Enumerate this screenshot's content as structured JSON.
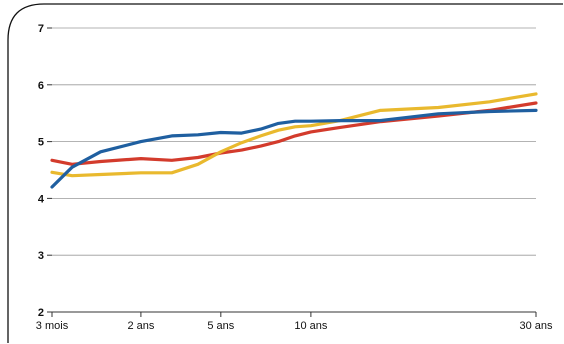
{
  "chart_data": {
    "type": "line",
    "title": "",
    "xlabel": "",
    "ylabel": "",
    "x_scale": "sqrt",
    "x_unit": "years",
    "xlim": [
      0.25,
      30
    ],
    "ylim": [
      2,
      7
    ],
    "grid": "horizontal",
    "yticks": [
      {
        "value": 2,
        "label": "2"
      },
      {
        "value": 3,
        "label": "3"
      },
      {
        "value": 4,
        "label": "4"
      },
      {
        "value": 5,
        "label": "5"
      },
      {
        "value": 6,
        "label": "6"
      },
      {
        "value": 7,
        "label": "7"
      }
    ],
    "xticks": [
      {
        "value": 0.25,
        "label": "3 mois"
      },
      {
        "value": 2,
        "label": "2 ans"
      },
      {
        "value": 5,
        "label": "5 ans"
      },
      {
        "value": 10,
        "label": "10 ans"
      },
      {
        "value": 30,
        "label": "30 ans"
      }
    ],
    "series": [
      {
        "color": "#d33b2c",
        "x": [
          0.25,
          0.5,
          1,
          2,
          3,
          4,
          5,
          6,
          7,
          8,
          9,
          10,
          12,
          15,
          20,
          25,
          30
        ],
        "y": [
          4.67,
          4.6,
          4.65,
          4.7,
          4.67,
          4.72,
          4.8,
          4.85,
          4.92,
          5.0,
          5.1,
          5.17,
          5.25,
          5.35,
          5.45,
          5.55,
          5.68
        ]
      },
      {
        "color": "#e9b92e",
        "x": [
          0.25,
          0.5,
          1,
          2,
          3,
          4,
          5,
          6,
          7,
          8,
          9,
          10,
          12,
          15,
          20,
          25,
          30
        ],
        "y": [
          4.46,
          4.4,
          4.42,
          4.45,
          4.45,
          4.6,
          4.82,
          4.98,
          5.1,
          5.2,
          5.26,
          5.28,
          5.37,
          5.55,
          5.6,
          5.7,
          5.84
        ]
      },
      {
        "color": "#1f5fa0",
        "x": [
          0.25,
          0.5,
          1,
          2,
          3,
          4,
          5,
          6,
          7,
          8,
          9,
          10,
          12,
          15,
          20,
          25,
          30
        ],
        "y": [
          4.2,
          4.55,
          4.82,
          5.0,
          5.1,
          5.12,
          5.16,
          5.15,
          5.22,
          5.32,
          5.36,
          5.36,
          5.37,
          5.37,
          5.49,
          5.53,
          5.55
        ]
      }
    ]
  }
}
